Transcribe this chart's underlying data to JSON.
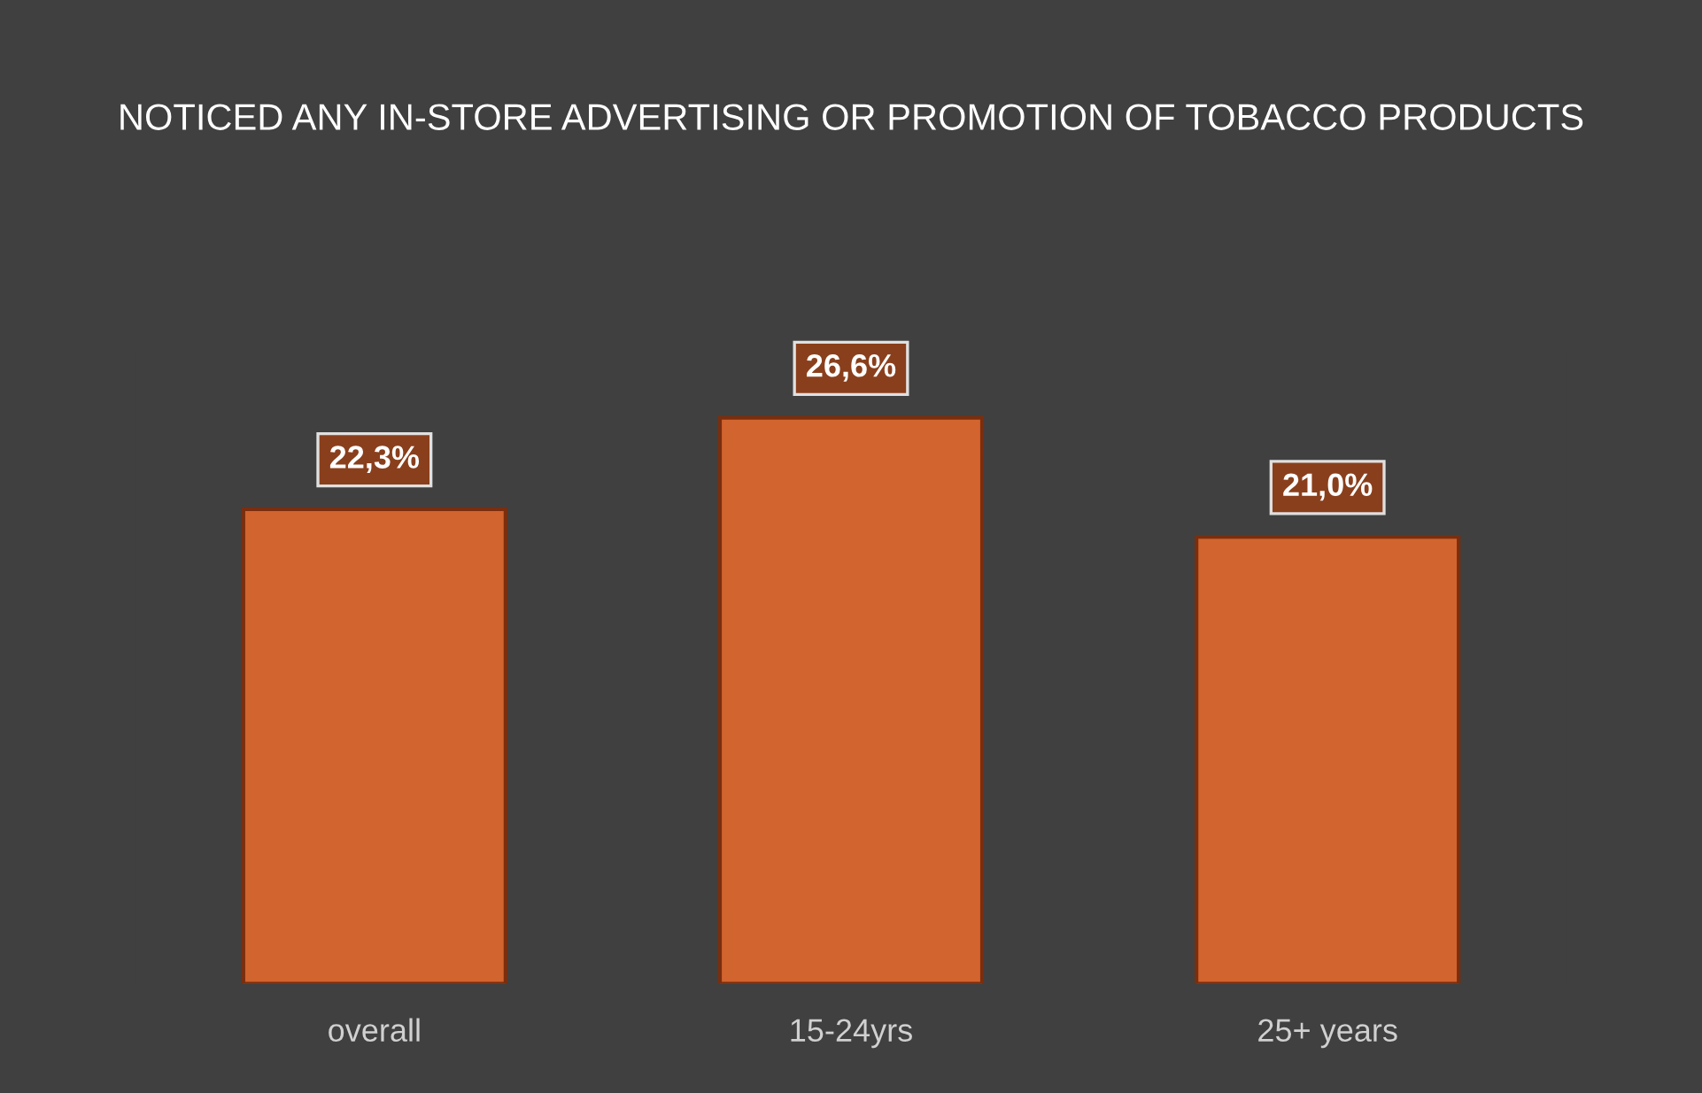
{
  "chart_data": {
    "type": "bar",
    "title": "NOTICED ANY IN-STORE ADVERTISING OR PROMOTION OF TOBACCO PRODUCTS",
    "categories": [
      "overall",
      "15-24yrs",
      "25+ years"
    ],
    "values": [
      22.3,
      26.6,
      21.0
    ],
    "value_labels": [
      "22,3%",
      "26,6%",
      "21,0%"
    ],
    "color": "#d2642f",
    "tick_labels": "x",
    "grid": false,
    "legend": false
  }
}
